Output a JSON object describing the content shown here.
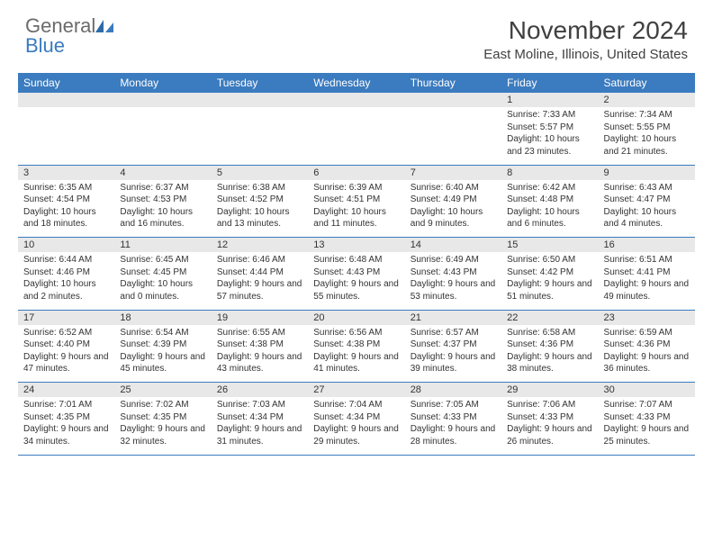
{
  "brand": {
    "part1": "General",
    "part2": "Blue"
  },
  "title": "November 2024",
  "location": "East Moline, Illinois, United States",
  "colors": {
    "header_bg": "#3b7bbf",
    "header_text": "#ffffff",
    "daynum_bg": "#e8e8e8",
    "text": "#333333",
    "rule": "#3b7bbf",
    "logo_gray": "#6b6b6b",
    "logo_blue": "#3b7bbf"
  },
  "days": [
    "Sunday",
    "Monday",
    "Tuesday",
    "Wednesday",
    "Thursday",
    "Friday",
    "Saturday"
  ],
  "weeks": [
    [
      null,
      null,
      null,
      null,
      null,
      {
        "n": "1",
        "sr": "7:33 AM",
        "ss": "5:57 PM",
        "dl": "10 hours and 23 minutes."
      },
      {
        "n": "2",
        "sr": "7:34 AM",
        "ss": "5:55 PM",
        "dl": "10 hours and 21 minutes."
      }
    ],
    [
      {
        "n": "3",
        "sr": "6:35 AM",
        "ss": "4:54 PM",
        "dl": "10 hours and 18 minutes."
      },
      {
        "n": "4",
        "sr": "6:37 AM",
        "ss": "4:53 PM",
        "dl": "10 hours and 16 minutes."
      },
      {
        "n": "5",
        "sr": "6:38 AM",
        "ss": "4:52 PM",
        "dl": "10 hours and 13 minutes."
      },
      {
        "n": "6",
        "sr": "6:39 AM",
        "ss": "4:51 PM",
        "dl": "10 hours and 11 minutes."
      },
      {
        "n": "7",
        "sr": "6:40 AM",
        "ss": "4:49 PM",
        "dl": "10 hours and 9 minutes."
      },
      {
        "n": "8",
        "sr": "6:42 AM",
        "ss": "4:48 PM",
        "dl": "10 hours and 6 minutes."
      },
      {
        "n": "9",
        "sr": "6:43 AM",
        "ss": "4:47 PM",
        "dl": "10 hours and 4 minutes."
      }
    ],
    [
      {
        "n": "10",
        "sr": "6:44 AM",
        "ss": "4:46 PM",
        "dl": "10 hours and 2 minutes."
      },
      {
        "n": "11",
        "sr": "6:45 AM",
        "ss": "4:45 PM",
        "dl": "10 hours and 0 minutes."
      },
      {
        "n": "12",
        "sr": "6:46 AM",
        "ss": "4:44 PM",
        "dl": "9 hours and 57 minutes."
      },
      {
        "n": "13",
        "sr": "6:48 AM",
        "ss": "4:43 PM",
        "dl": "9 hours and 55 minutes."
      },
      {
        "n": "14",
        "sr": "6:49 AM",
        "ss": "4:43 PM",
        "dl": "9 hours and 53 minutes."
      },
      {
        "n": "15",
        "sr": "6:50 AM",
        "ss": "4:42 PM",
        "dl": "9 hours and 51 minutes."
      },
      {
        "n": "16",
        "sr": "6:51 AM",
        "ss": "4:41 PM",
        "dl": "9 hours and 49 minutes."
      }
    ],
    [
      {
        "n": "17",
        "sr": "6:52 AM",
        "ss": "4:40 PM",
        "dl": "9 hours and 47 minutes."
      },
      {
        "n": "18",
        "sr": "6:54 AM",
        "ss": "4:39 PM",
        "dl": "9 hours and 45 minutes."
      },
      {
        "n": "19",
        "sr": "6:55 AM",
        "ss": "4:38 PM",
        "dl": "9 hours and 43 minutes."
      },
      {
        "n": "20",
        "sr": "6:56 AM",
        "ss": "4:38 PM",
        "dl": "9 hours and 41 minutes."
      },
      {
        "n": "21",
        "sr": "6:57 AM",
        "ss": "4:37 PM",
        "dl": "9 hours and 39 minutes."
      },
      {
        "n": "22",
        "sr": "6:58 AM",
        "ss": "4:36 PM",
        "dl": "9 hours and 38 minutes."
      },
      {
        "n": "23",
        "sr": "6:59 AM",
        "ss": "4:36 PM",
        "dl": "9 hours and 36 minutes."
      }
    ],
    [
      {
        "n": "24",
        "sr": "7:01 AM",
        "ss": "4:35 PM",
        "dl": "9 hours and 34 minutes."
      },
      {
        "n": "25",
        "sr": "7:02 AM",
        "ss": "4:35 PM",
        "dl": "9 hours and 32 minutes."
      },
      {
        "n": "26",
        "sr": "7:03 AM",
        "ss": "4:34 PM",
        "dl": "9 hours and 31 minutes."
      },
      {
        "n": "27",
        "sr": "7:04 AM",
        "ss": "4:34 PM",
        "dl": "9 hours and 29 minutes."
      },
      {
        "n": "28",
        "sr": "7:05 AM",
        "ss": "4:33 PM",
        "dl": "9 hours and 28 minutes."
      },
      {
        "n": "29",
        "sr": "7:06 AM",
        "ss": "4:33 PM",
        "dl": "9 hours and 26 minutes."
      },
      {
        "n": "30",
        "sr": "7:07 AM",
        "ss": "4:33 PM",
        "dl": "9 hours and 25 minutes."
      }
    ]
  ],
  "labels": {
    "sunrise": "Sunrise:",
    "sunset": "Sunset:",
    "daylight": "Daylight:"
  }
}
